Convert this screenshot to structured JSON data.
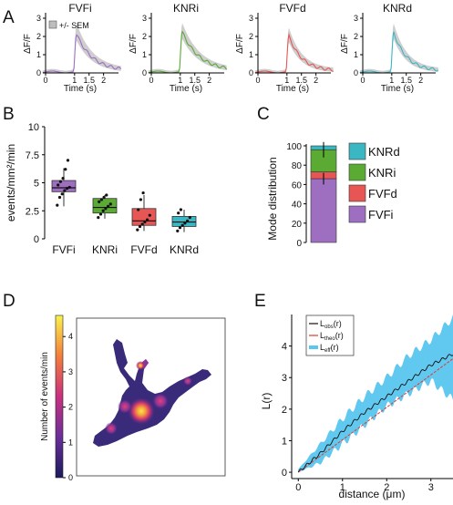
{
  "panel_labels": [
    "A",
    "B",
    "C",
    "D",
    "E"
  ],
  "colors": {
    "FVFi": "#9e6fc1",
    "KNRi": "#5aaa34",
    "FVFd": "#e85555",
    "KNRd": "#3bb7c4",
    "sem": "#bdbdbd",
    "eff": "#58c6ef",
    "theo": "#e03a2e",
    "obs": "#111111"
  },
  "chart_data": [
    {
      "id": "A",
      "type": "line",
      "sem_legend": "+/- SEM",
      "xlabel": "Time (s)",
      "ylabel": "ΔF/F",
      "x_ticks": [
        "0",
        "1",
        "1.5",
        "2"
      ],
      "y_ticks": [
        "0",
        "1",
        "2",
        "3"
      ],
      "ylim": [
        0,
        3.2
      ],
      "xlim": [
        -0.2,
        2.8
      ],
      "panels": [
        {
          "name": "FVFi",
          "peak": 2.2,
          "sem_upper": 2.7,
          "t_peak": 1.05,
          "decay": 0.55
        },
        {
          "name": "KNRi",
          "peak": 2.3,
          "sem_upper": 2.7,
          "t_peak": 1.05,
          "decay": 0.6
        },
        {
          "name": "FVFd",
          "peak": 2.1,
          "sem_upper": 2.45,
          "t_peak": 1.05,
          "decay": 0.45
        },
        {
          "name": "KNRd",
          "peak": 2.3,
          "sem_upper": 2.7,
          "t_peak": 1.05,
          "decay": 0.45
        }
      ]
    },
    {
      "id": "B",
      "type": "box",
      "ylabel": "events/mm²/min",
      "y_ticks": [
        "0",
        "2.5",
        "5",
        "7.5",
        "10"
      ],
      "ylim": [
        0,
        10
      ],
      "categories": [
        "FVFi",
        "KNRi",
        "FVFd",
        "KNRd"
      ],
      "boxes": [
        {
          "q1": 4.2,
          "median": 4.55,
          "q3": 5.2,
          "wlow": 2.9,
          "whigh": 6.3,
          "points": [
            3.0,
            3.7,
            4.0,
            4.3,
            4.5,
            4.6,
            4.8,
            5.1,
            5.4,
            6.2,
            7.0
          ]
        },
        {
          "q1": 2.3,
          "median": 2.8,
          "q3": 3.6,
          "wlow": 1.8,
          "whigh": 3.9,
          "points": [
            1.9,
            2.2,
            2.5,
            2.7,
            2.9,
            3.1,
            3.3,
            3.5,
            3.7,
            3.9
          ]
        },
        {
          "q1": 1.2,
          "median": 1.6,
          "q3": 2.7,
          "wlow": 0.7,
          "whigh": 3.9,
          "points": [
            0.8,
            1.1,
            1.3,
            1.5,
            1.7,
            2.1,
            2.6,
            3.5,
            4.1
          ]
        },
        {
          "q1": 1.1,
          "median": 1.5,
          "q3": 2.0,
          "wlow": 0.6,
          "whigh": 2.6,
          "points": [
            0.7,
            1.0,
            1.2,
            1.4,
            1.6,
            1.9,
            2.3,
            2.6
          ]
        }
      ]
    },
    {
      "id": "C",
      "type": "bar",
      "ylabel": "Mode distribution",
      "y_ticks": [
        "0",
        "20",
        "40",
        "60",
        "80",
        "100"
      ],
      "ylim": [
        0,
        100
      ],
      "stack": [
        {
          "name": "FVFi",
          "value": 66
        },
        {
          "name": "FVFd",
          "value": 7
        },
        {
          "name": "KNRi",
          "value": 23
        },
        {
          "name": "KNRd",
          "value": 4
        }
      ],
      "legend": [
        "KNRd",
        "KNRi",
        "FVFd",
        "FVFi"
      ]
    },
    {
      "id": "D",
      "type": "heatmap",
      "colorbar_label": "Number of events/min",
      "c_ticks": [
        "0",
        "1",
        "2",
        "3",
        "4"
      ],
      "clim": [
        0,
        4.6
      ]
    },
    {
      "id": "E",
      "type": "line",
      "xlabel": "distance (μm)",
      "ylabel": "L(r)",
      "x_ticks": [
        "0",
        "1",
        "2",
        "3"
      ],
      "y_ticks": [
        "0",
        "1",
        "2",
        "3",
        "4"
      ],
      "xlim": [
        -0.15,
        3.5
      ],
      "ylim": [
        -0.2,
        5.0
      ],
      "legend": [
        {
          "key": "obs",
          "base": "L",
          "sub": "obs",
          "suffix": "(r)"
        },
        {
          "key": "theo",
          "base": "L",
          "sub": "theo",
          "suffix": "(r)"
        },
        {
          "key": "eff",
          "base": "L",
          "sub": "eff",
          "suffix": "(r)"
        }
      ],
      "series": [
        {
          "key": "eff_upper",
          "x": [
            0,
            0.5,
            1.0,
            1.5,
            2.0,
            2.5,
            3.0,
            3.5
          ],
          "y": [
            0.1,
            0.9,
            1.7,
            2.4,
            3.0,
            3.7,
            4.2,
            4.9
          ]
        },
        {
          "key": "eff_lower",
          "x": [
            0,
            0.5,
            1.0,
            1.5,
            2.0,
            2.5,
            3.0,
            3.5
          ],
          "y": [
            0.0,
            0.3,
            0.9,
            1.5,
            2.1,
            2.5,
            2.9,
            2.3
          ]
        },
        {
          "key": "obs",
          "x": [
            0,
            0.5,
            1.0,
            1.5,
            2.0,
            2.5,
            3.0,
            3.5
          ],
          "y": [
            0.0,
            0.6,
            1.3,
            1.9,
            2.4,
            2.9,
            3.4,
            3.75
          ]
        },
        {
          "key": "theo",
          "x": [
            0,
            3.5
          ],
          "y": [
            0.0,
            3.6
          ]
        }
      ]
    }
  ]
}
